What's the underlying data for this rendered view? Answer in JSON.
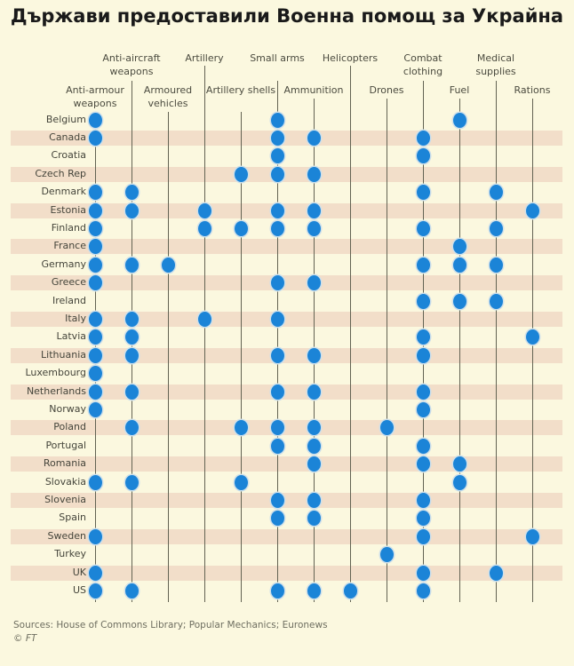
{
  "title": "Държави предоставили Военна помощ за Украйна",
  "footer": {
    "sources": "Sources: House of Commons Library; Popular Mechanics; Euronews",
    "copyright": "© FT"
  },
  "colors": {
    "background": "#fbf8df",
    "stripe": "#f2dec9",
    "dot_blue": "#1b84d7",
    "dot_halo": "#cfe0ea",
    "grid_line": "#636353",
    "label_text": "#45453b",
    "header_text": "#4c4c40",
    "title_text": "#1a1a1a",
    "footer_text": "#6e6e60"
  },
  "chart_data": {
    "type": "heatmap",
    "title": "Държави предоставили Военна помощ за Украйна",
    "columns": [
      "Anti-armour weapons",
      "Anti-aircraft weapons",
      "Armoured vehicles",
      "Artillery",
      "Artillery shells",
      "Small arms",
      "Ammunition",
      "Helicopters",
      "Drones",
      "Combat clothing",
      "Fuel",
      "Medical supplies",
      "Rations"
    ],
    "column_tier": [
      "bottom",
      "top",
      "bottom",
      "top",
      "bottom",
      "top",
      "bottom",
      "top",
      "bottom",
      "top",
      "bottom",
      "top",
      "bottom"
    ],
    "countries": [
      "Belgium",
      "Canada",
      "Croatia",
      "Czech Rep",
      "Denmark",
      "Estonia",
      "Finland",
      "France",
      "Germany",
      "Greece",
      "Ireland",
      "Italy",
      "Latvia",
      "Lithuania",
      "Luxembourg",
      "Netherlands",
      "Norway",
      "Poland",
      "Portugal",
      "Romania",
      "Slovakia",
      "Slovenia",
      "Spain",
      "Sweden",
      "Turkey",
      "UK",
      "US"
    ],
    "values": [
      [
        1,
        0,
        0,
        0,
        0,
        1,
        0,
        0,
        0,
        0,
        1,
        0,
        0
      ],
      [
        1,
        0,
        0,
        0,
        0,
        1,
        1,
        0,
        0,
        1,
        0,
        0,
        0
      ],
      [
        0,
        0,
        0,
        0,
        0,
        1,
        0,
        0,
        0,
        1,
        0,
        0,
        0
      ],
      [
        0,
        0,
        0,
        0,
        1,
        1,
        1,
        0,
        0,
        0,
        0,
        0,
        0
      ],
      [
        1,
        1,
        0,
        0,
        0,
        0,
        0,
        0,
        0,
        1,
        0,
        1,
        0
      ],
      [
        1,
        1,
        0,
        1,
        0,
        1,
        1,
        0,
        0,
        0,
        0,
        0,
        1
      ],
      [
        1,
        0,
        0,
        1,
        1,
        1,
        1,
        0,
        0,
        1,
        0,
        1,
        0
      ],
      [
        1,
        0,
        0,
        0,
        0,
        0,
        0,
        0,
        0,
        0,
        1,
        0,
        0
      ],
      [
        1,
        1,
        1,
        0,
        0,
        0,
        0,
        0,
        0,
        1,
        1,
        1,
        0
      ],
      [
        1,
        0,
        0,
        0,
        0,
        1,
        1,
        0,
        0,
        0,
        0,
        0,
        0
      ],
      [
        0,
        0,
        0,
        0,
        0,
        0,
        0,
        0,
        0,
        1,
        1,
        1,
        0
      ],
      [
        1,
        1,
        0,
        1,
        0,
        1,
        0,
        0,
        0,
        0,
        0,
        0,
        0
      ],
      [
        1,
        1,
        0,
        0,
        0,
        0,
        0,
        0,
        0,
        1,
        0,
        0,
        1
      ],
      [
        1,
        1,
        0,
        0,
        0,
        1,
        1,
        0,
        0,
        1,
        0,
        0,
        0
      ],
      [
        1,
        0,
        0,
        0,
        0,
        0,
        0,
        0,
        0,
        0,
        0,
        0,
        0
      ],
      [
        1,
        1,
        0,
        0,
        0,
        1,
        1,
        0,
        0,
        1,
        0,
        0,
        0
      ],
      [
        1,
        0,
        0,
        0,
        0,
        0,
        0,
        0,
        0,
        1,
        0,
        0,
        0
      ],
      [
        0,
        1,
        0,
        0,
        1,
        1,
        1,
        0,
        1,
        0,
        0,
        0,
        0
      ],
      [
        0,
        0,
        0,
        0,
        0,
        1,
        1,
        0,
        0,
        1,
        0,
        0,
        0
      ],
      [
        0,
        0,
        0,
        0,
        0,
        0,
        1,
        0,
        0,
        1,
        1,
        0,
        0
      ],
      [
        1,
        1,
        0,
        0,
        1,
        0,
        0,
        0,
        0,
        0,
        1,
        0,
        0
      ],
      [
        0,
        0,
        0,
        0,
        0,
        1,
        1,
        0,
        0,
        1,
        0,
        0,
        0
      ],
      [
        0,
        0,
        0,
        0,
        0,
        1,
        1,
        0,
        0,
        1,
        0,
        0,
        0
      ],
      [
        1,
        0,
        0,
        0,
        0,
        0,
        0,
        0,
        0,
        1,
        0,
        0,
        1
      ],
      [
        0,
        0,
        0,
        0,
        0,
        0,
        0,
        0,
        1,
        0,
        0,
        0,
        0
      ],
      [
        1,
        0,
        0,
        0,
        0,
        0,
        0,
        0,
        0,
        1,
        0,
        1,
        0
      ],
      [
        1,
        1,
        0,
        0,
        0,
        1,
        1,
        1,
        0,
        1,
        0,
        0,
        0
      ]
    ],
    "cell_meaning": "1 = country provided this aid category (blue dot), 0 = none",
    "legend": null,
    "grid": "vertical category lines, alternating row stripes"
  }
}
